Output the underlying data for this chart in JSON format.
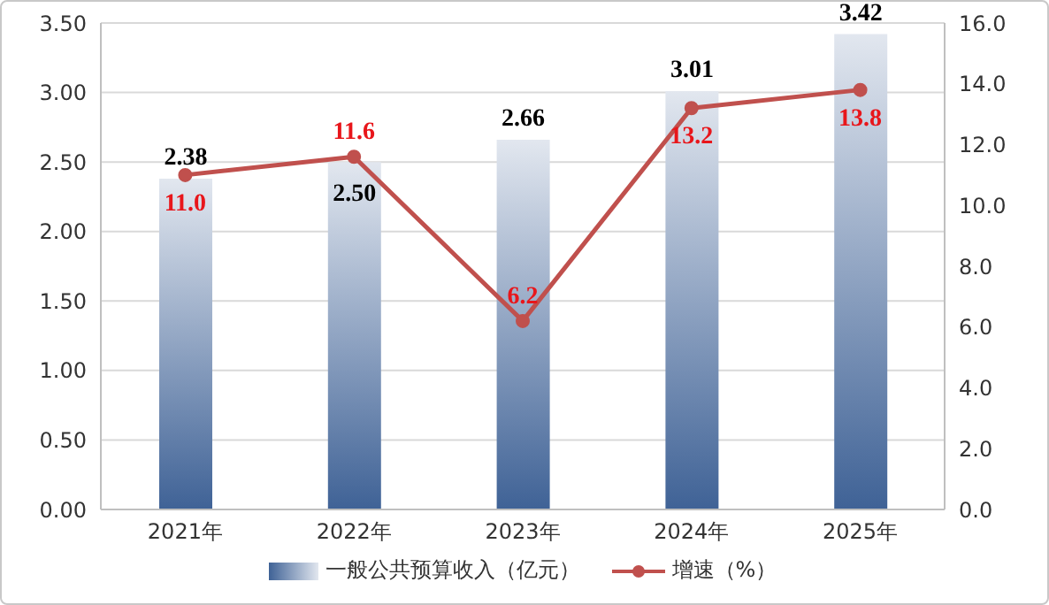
{
  "chart_data": {
    "type": "bar",
    "categories": [
      "2021年",
      "2022年",
      "2023年",
      "2024年",
      "2025年"
    ],
    "series": [
      {
        "name": "一般公共预算收入（亿元）",
        "color": "#3f6296",
        "values": [
          2.38,
          2.5,
          2.66,
          3.01,
          3.42
        ],
        "value_labels": [
          "2.38",
          "2.50",
          "2.66",
          "3.01",
          "3.42"
        ]
      },
      {
        "name": "增速（%）",
        "type": "line",
        "axis": "y2",
        "color": "#c0504d",
        "values": [
          11.0,
          11.6,
          6.2,
          13.2,
          13.8
        ],
        "value_labels": [
          "11.0",
          "11.6",
          "6.2",
          "13.2",
          "13.8"
        ]
      }
    ],
    "ylim": [
      0,
      3.5
    ],
    "yticks": [
      {
        "value": 0,
        "label": "0.00"
      },
      {
        "value": 0.5,
        "label": "0.50"
      },
      {
        "value": 1,
        "label": "1.00"
      },
      {
        "value": 1.5,
        "label": "1.50"
      },
      {
        "value": 2,
        "label": "2.00"
      },
      {
        "value": 2.5,
        "label": "2.50"
      },
      {
        "value": 3,
        "label": "3.00"
      },
      {
        "value": 3.5,
        "label": "3.50"
      }
    ],
    "y2lim": [
      0,
      16
    ],
    "y2ticks": [
      {
        "value": 0,
        "label": "0.0"
      },
      {
        "value": 2,
        "label": "2.0"
      },
      {
        "value": 4,
        "label": "4.0"
      },
      {
        "value": 6,
        "label": "6.0"
      },
      {
        "value": 8,
        "label": "8.0"
      },
      {
        "value": 10,
        "label": "10.0"
      },
      {
        "value": 12,
        "label": "12.0"
      },
      {
        "value": 14,
        "label": "14.0"
      },
      {
        "value": 16,
        "label": "16.0"
      }
    ],
    "grid": "y",
    "legend": "bottom",
    "marker": "circle",
    "line_style": "solid"
  }
}
